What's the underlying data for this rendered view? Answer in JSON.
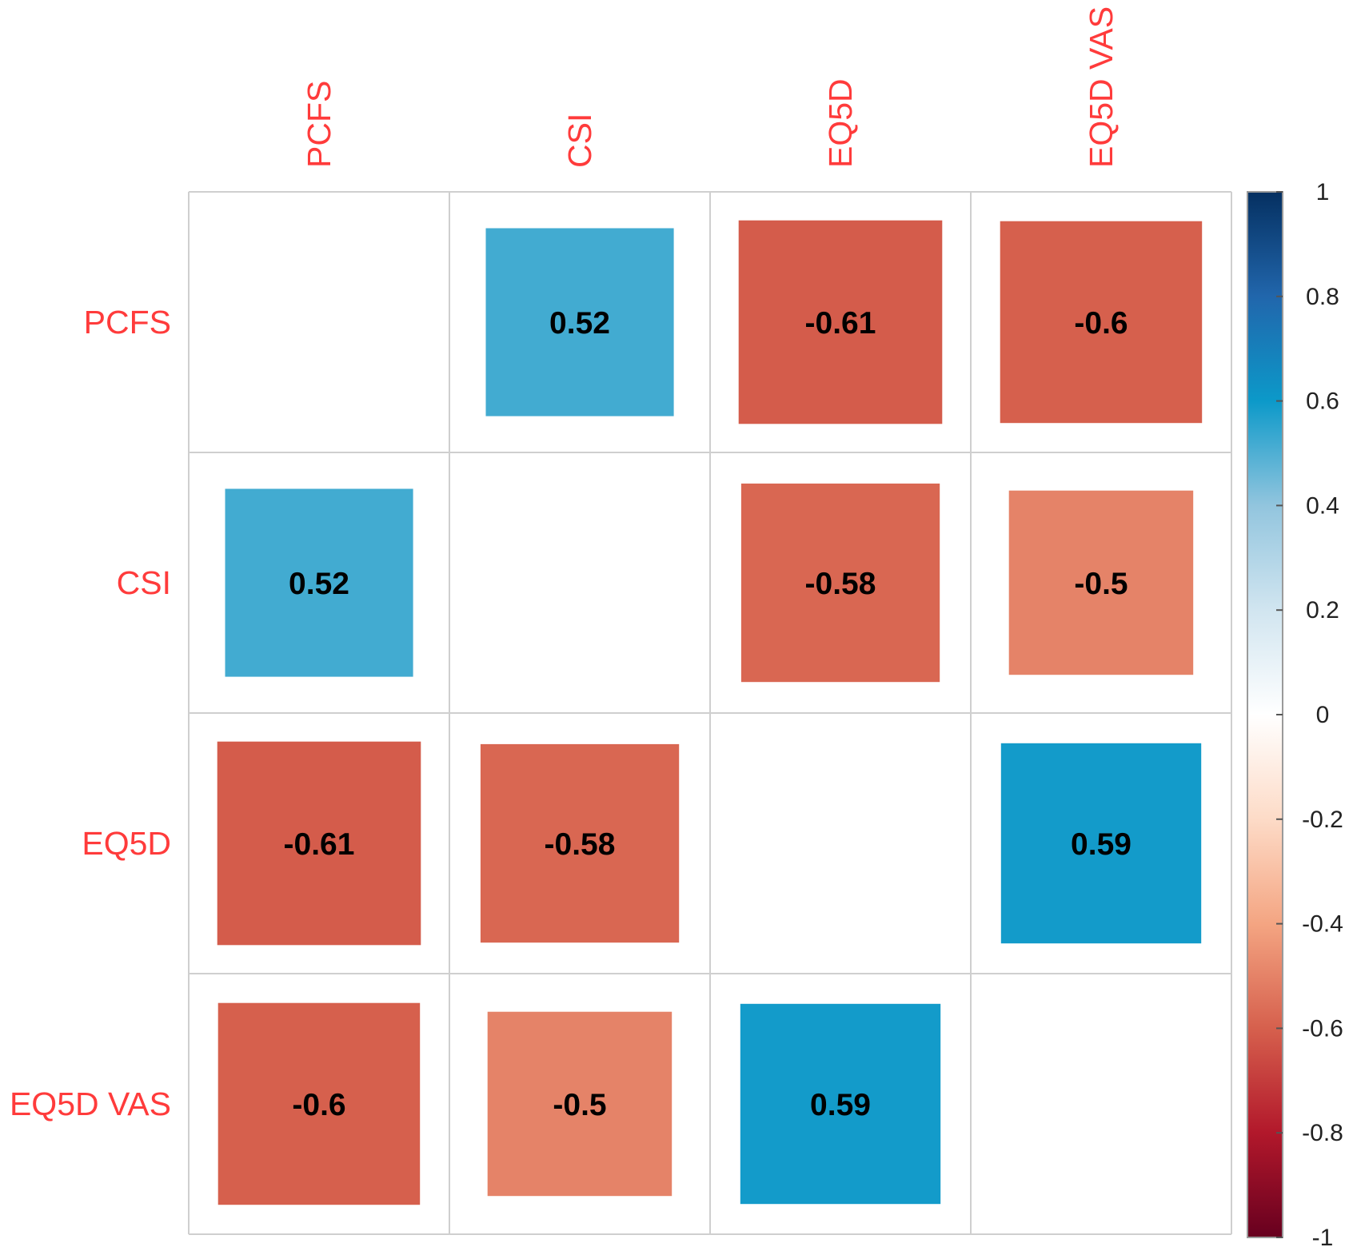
{
  "chart_data": {
    "type": "heatmap",
    "style": "correlation-matrix-squares",
    "variables": [
      "PCFS",
      "CSI",
      "EQ5D",
      "EQ5D VAS"
    ],
    "matrix": [
      [
        null,
        0.52,
        -0.61,
        -0.6
      ],
      [
        0.52,
        null,
        -0.58,
        -0.5
      ],
      [
        -0.61,
        -0.58,
        null,
        0.59
      ],
      [
        -0.6,
        -0.5,
        0.59,
        null
      ]
    ],
    "cell_labels": [
      [
        null,
        "0.52",
        "-0.61",
        "-0.6"
      ],
      [
        null,
        null,
        "-0.58",
        "-0.5"
      ],
      [
        "-0.61",
        "-0.58",
        null,
        "0.59"
      ],
      [
        "-0.6",
        "-0.5",
        "0.59",
        null
      ]
    ],
    "cell_labels_first_column_row2": "0.52",
    "color_scale": {
      "range": [
        -1,
        1
      ],
      "ticks": [
        "1",
        "0.8",
        "0.6",
        "0.4",
        "0.2",
        "0",
        "-0.2",
        "-0.4",
        "-0.6",
        "-0.8",
        "-1"
      ],
      "stops": [
        {
          "value": -1,
          "color": "#67001f"
        },
        {
          "value": -0.8,
          "color": "#b2182b"
        },
        {
          "value": -0.6,
          "color": "#d6604d"
        },
        {
          "value": -0.4,
          "color": "#f4a582"
        },
        {
          "value": -0.2,
          "color": "#fddbc7"
        },
        {
          "value": 0,
          "color": "#ffffff"
        },
        {
          "value": 0.2,
          "color": "#d1e5f0"
        },
        {
          "value": 0.4,
          "color": "#92c5de"
        },
        {
          "value": 0.6,
          "color": "#0c99c9"
        },
        {
          "value": 0.8,
          "color": "#2166ac"
        },
        {
          "value": 1,
          "color": "#053061"
        }
      ]
    },
    "legend_position": "right",
    "label_color": "#ff3b3b",
    "grid": true
  }
}
